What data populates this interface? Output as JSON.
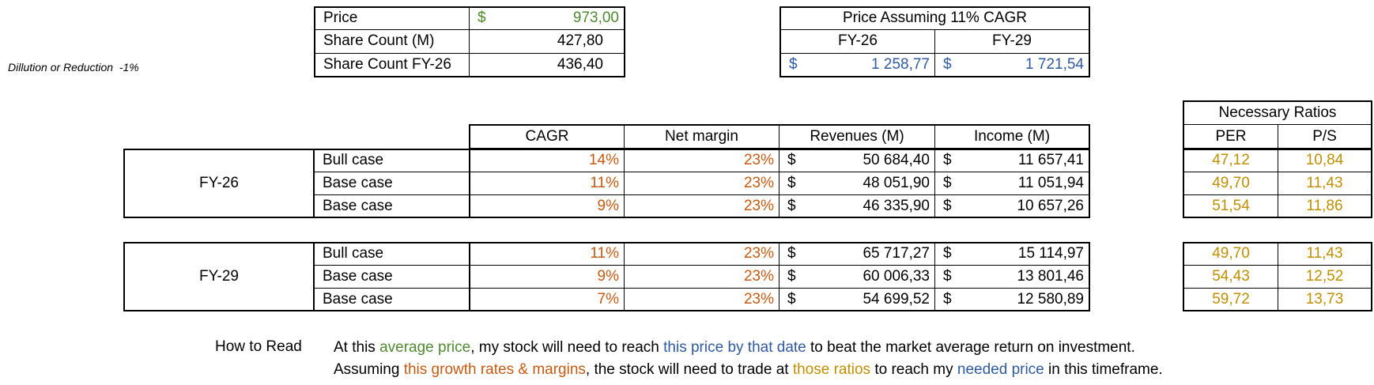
{
  "dilution": {
    "label": "Dillution or Reduction",
    "value": "-1%"
  },
  "summary": {
    "rows": [
      {
        "label": "Price",
        "currency": "$",
        "value": "973,00"
      },
      {
        "label": "Share Count (M)",
        "value": "427,80"
      },
      {
        "label": "Share Count FY-26",
        "value": "436,40"
      }
    ]
  },
  "price_assumption": {
    "title": "Price Assuming 11% CAGR",
    "headers": [
      "FY-26",
      "FY-29"
    ],
    "currency": "$",
    "values": [
      "1 258,77",
      "1 721,54"
    ]
  },
  "main_headers": [
    "CAGR",
    "Net margin",
    "Revenues (M)",
    "Income (M)"
  ],
  "ratios_header": {
    "title": "Necessary Ratios",
    "cols": [
      "PER",
      "P/S"
    ]
  },
  "currency": "$",
  "groups": [
    {
      "period": "FY-26",
      "rows": [
        {
          "case": "Bull case",
          "cagr": "14%",
          "margin": "23%",
          "revenues": "50 684,40",
          "income": "11 657,41",
          "per": "47,12",
          "ps": "10,84"
        },
        {
          "case": "Base case",
          "cagr": "11%",
          "margin": "23%",
          "revenues": "48 051,90",
          "income": "11 051,94",
          "per": "49,70",
          "ps": "11,43"
        },
        {
          "case": "Base case",
          "cagr": "9%",
          "margin": "23%",
          "revenues": "46 335,90",
          "income": "10 657,26",
          "per": "51,54",
          "ps": "11,86"
        }
      ]
    },
    {
      "period": "FY-29",
      "rows": [
        {
          "case": "Bull case",
          "cagr": "11%",
          "margin": "23%",
          "revenues": "65 717,27",
          "income": "15 114,97",
          "per": "49,70",
          "ps": "11,43"
        },
        {
          "case": "Base case",
          "cagr": "9%",
          "margin": "23%",
          "revenues": "60 006,33",
          "income": "13 801,46",
          "per": "54,43",
          "ps": "12,52"
        },
        {
          "case": "Base case",
          "cagr": "7%",
          "margin": "23%",
          "revenues": "54 699,52",
          "income": "12 580,89",
          "per": "59,72",
          "ps": "13,73"
        }
      ]
    }
  ],
  "how_to_read": {
    "label": "How to Read",
    "line1": {
      "p1": "At this ",
      "green": "average price",
      "p2": ", my stock will need to reach ",
      "blue": "this price by that date",
      "p3": " to beat the market average return on investment."
    },
    "line2": {
      "p1": "Assuming ",
      "orange": "this growth rates & margins",
      "p2": ", the stock will need to trade at ",
      "gold": "those ratios",
      "p3": " to reach my ",
      "blue": "needed price",
      "p4": " in this timeframe."
    }
  }
}
